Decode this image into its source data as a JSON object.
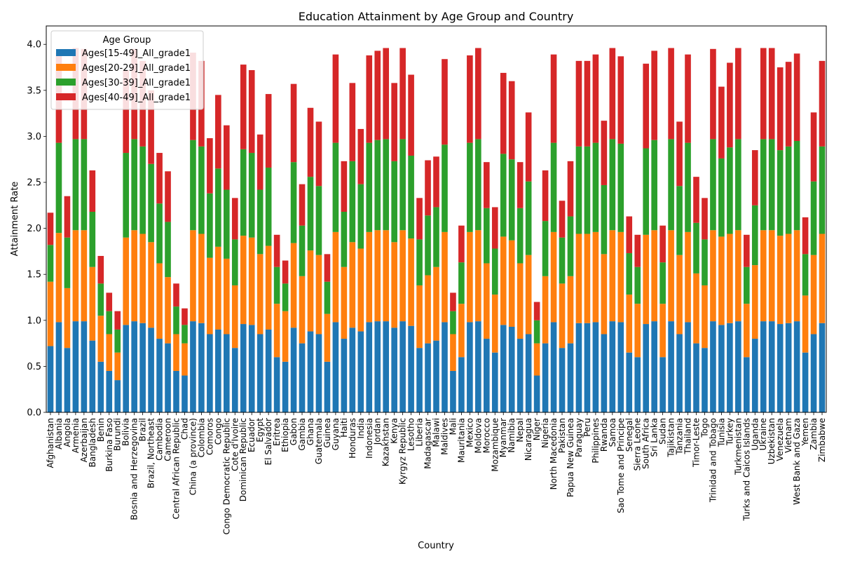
{
  "chart_data": {
    "type": "bar",
    "stacked": true,
    "title": "Education Attainment by Age Group and Country",
    "xlabel": "Country",
    "ylabel": "Attainment Rate",
    "ylim": [
      0,
      4.2
    ],
    "yticks": [
      "0.0",
      "0.5",
      "1.0",
      "1.5",
      "2.0",
      "2.5",
      "3.0",
      "3.5",
      "4.0"
    ],
    "grid": false,
    "legend": {
      "title": "Age Group",
      "placement": "top-left",
      "entries": [
        {
          "name": "Ages[15-49]_All_grade1",
          "color": "#1f77b4"
        },
        {
          "name": "Ages[20-29]_All_grade1",
          "color": "#ff7f0e"
        },
        {
          "name": "Ages[30-39]_All_grade1",
          "color": "#2ca02c"
        },
        {
          "name": "Ages[40-49]_All_grade1",
          "color": "#d62728"
        }
      ]
    },
    "categories": [
      "Afghanistan",
      "Albania",
      "Angola",
      "Armenia",
      "Azerbaijan",
      "Bangladesh",
      "Benin",
      "Burkina Faso",
      "Burundi",
      "Bolivia",
      "Bosnia and Herzegovina",
      "Brazil",
      "Brazil, Northeast",
      "Cambodia",
      "Cameroon",
      "Central African Republic",
      "Chad",
      "China (a province)",
      "Colombia",
      "Comoros",
      "Congo",
      "Congo Democratic Republic",
      "Cote d'Ivoire",
      "Dominican Republic",
      "Ecuador",
      "Egypt",
      "El Salvador",
      "Eritrea",
      "Ethiopia",
      "Gabon",
      "Gambia",
      "Ghana",
      "Guatemala",
      "Guinea",
      "Guyana",
      "Haiti",
      "Honduras",
      "India",
      "Indonesia",
      "Jordan",
      "Kazakhstan",
      "Kenya",
      "Kyrgyz Republic",
      "Lesotho",
      "Liberia",
      "Madagascar",
      "Malawi",
      "Maldives",
      "Mali",
      "Mauritania",
      "Mexico",
      "Moldova",
      "Morocco",
      "Mozambique",
      "Myanmar",
      "Namibia",
      "Nepal",
      "Nicaragua",
      "Niger",
      "Nigeria",
      "North Macedonia",
      "Pakistan",
      "Papua New Guinea",
      "Paraguay",
      "Peru",
      "Philippines",
      "Rwanda",
      "Samoa",
      "Sao Tome and Principe",
      "Senegal",
      "Sierra Leone",
      "South Africa",
      "Sri Lanka",
      "Sudan",
      "Tajikistan",
      "Tanzania",
      "Thailand",
      "Timor-Leste",
      "Togo",
      "Trinidad and Tobago",
      "Tunisia",
      "Turkey",
      "Turkmenistan",
      "Turks and Caicos Islands",
      "Uganda",
      "Ukraine",
      "Uzbekistan",
      "Venezuela",
      "Vietnam",
      "West Bank and Gaza",
      "Yemen",
      "Zambia",
      "Zimbabwe"
    ],
    "series": [
      {
        "name": "Ages[15-49]_All_grade1",
        "values": [
          0.72,
          0.98,
          0.7,
          0.99,
          0.99,
          0.78,
          0.55,
          0.45,
          0.35,
          0.95,
          0.99,
          0.97,
          0.92,
          0.8,
          0.75,
          0.45,
          0.4,
          0.99,
          0.97,
          0.85,
          0.9,
          0.85,
          0.7,
          0.96,
          0.95,
          0.85,
          0.9,
          0.6,
          0.55,
          0.92,
          0.75,
          0.88,
          0.85,
          0.55,
          0.98,
          0.8,
          0.92,
          0.88,
          0.98,
          0.99,
          0.99,
          0.92,
          0.99,
          0.94,
          0.7,
          0.75,
          0.78,
          0.98,
          0.45,
          0.6,
          0.98,
          0.99,
          0.8,
          0.65,
          0.95,
          0.93,
          0.8,
          0.85,
          0.4,
          0.75,
          0.98,
          0.7,
          0.75,
          0.97,
          0.97,
          0.98,
          0.85,
          0.99,
          0.98,
          0.65,
          0.6,
          0.96,
          0.99,
          0.6,
          0.99,
          0.85,
          0.98,
          0.75,
          0.7,
          0.99,
          0.95,
          0.97,
          0.99,
          0.6,
          0.8,
          0.99,
          0.99,
          0.96,
          0.97,
          0.99,
          0.65,
          0.85,
          0.97
        ]
      },
      {
        "name": "Ages[20-29]_All_grade1",
        "values": [
          0.7,
          0.97,
          0.65,
          0.99,
          0.99,
          0.8,
          0.5,
          0.4,
          0.3,
          0.95,
          0.99,
          0.97,
          0.93,
          0.82,
          0.72,
          0.4,
          0.35,
          0.99,
          0.97,
          0.83,
          0.9,
          0.82,
          0.68,
          0.96,
          0.95,
          0.87,
          0.91,
          0.58,
          0.55,
          0.92,
          0.73,
          0.88,
          0.86,
          0.52,
          0.98,
          0.78,
          0.93,
          0.9,
          0.98,
          0.99,
          0.99,
          0.93,
          0.99,
          0.95,
          0.68,
          0.74,
          0.8,
          0.98,
          0.4,
          0.58,
          0.98,
          0.99,
          0.82,
          0.63,
          0.96,
          0.94,
          0.82,
          0.86,
          0.35,
          0.73,
          0.98,
          0.7,
          0.73,
          0.97,
          0.97,
          0.98,
          0.87,
          0.99,
          0.98,
          0.63,
          0.58,
          0.97,
          0.99,
          0.58,
          0.99,
          0.86,
          0.98,
          0.76,
          0.68,
          0.99,
          0.96,
          0.97,
          0.99,
          0.58,
          0.8,
          0.99,
          0.99,
          0.96,
          0.97,
          0.99,
          0.62,
          0.86,
          0.97
        ]
      },
      {
        "name": "Ages[30-39]_All_grade1",
        "values": [
          0.4,
          0.98,
          0.55,
          0.99,
          0.99,
          0.6,
          0.35,
          0.25,
          0.25,
          0.92,
          0.99,
          0.95,
          0.85,
          0.65,
          0.6,
          0.3,
          0.2,
          0.98,
          0.95,
          0.7,
          0.85,
          0.75,
          0.5,
          0.94,
          0.92,
          0.7,
          0.85,
          0.4,
          0.3,
          0.88,
          0.55,
          0.8,
          0.75,
          0.35,
          0.97,
          0.6,
          0.88,
          0.7,
          0.97,
          0.98,
          0.99,
          0.88,
          0.99,
          0.9,
          0.5,
          0.65,
          0.65,
          0.95,
          0.25,
          0.45,
          0.97,
          0.99,
          0.6,
          0.5,
          0.9,
          0.88,
          0.6,
          0.8,
          0.25,
          0.6,
          0.97,
          0.5,
          0.65,
          0.95,
          0.95,
          0.97,
          0.75,
          0.99,
          0.96,
          0.45,
          0.4,
          0.94,
          0.98,
          0.45,
          0.99,
          0.75,
          0.97,
          0.55,
          0.5,
          0.99,
          0.85,
          0.94,
          0.99,
          0.4,
          0.65,
          0.99,
          0.99,
          0.93,
          0.95,
          0.97,
          0.45,
          0.8,
          0.95
        ]
      },
      {
        "name": "Ages[40-49]_All_grade1",
        "values": [
          0.35,
          0.98,
          0.45,
          0.99,
          0.98,
          0.45,
          0.3,
          0.2,
          0.2,
          0.9,
          0.98,
          0.93,
          0.8,
          0.55,
          0.55,
          0.25,
          0.18,
          0.95,
          0.93,
          0.6,
          0.8,
          0.7,
          0.45,
          0.92,
          0.9,
          0.6,
          0.8,
          0.35,
          0.25,
          0.85,
          0.45,
          0.75,
          0.7,
          0.3,
          0.96,
          0.55,
          0.85,
          0.6,
          0.95,
          0.97,
          0.99,
          0.85,
          0.99,
          0.88,
          0.45,
          0.6,
          0.55,
          0.93,
          0.2,
          0.4,
          0.95,
          0.99,
          0.5,
          0.45,
          0.88,
          0.85,
          0.5,
          0.75,
          0.2,
          0.55,
          0.96,
          0.4,
          0.6,
          0.93,
          0.93,
          0.96,
          0.7,
          0.99,
          0.95,
          0.4,
          0.35,
          0.92,
          0.97,
          0.4,
          0.99,
          0.7,
          0.96,
          0.5,
          0.45,
          0.98,
          0.78,
          0.92,
          0.99,
          0.35,
          0.6,
          0.99,
          0.99,
          0.9,
          0.92,
          0.95,
          0.4,
          0.75,
          0.93
        ]
      }
    ]
  }
}
